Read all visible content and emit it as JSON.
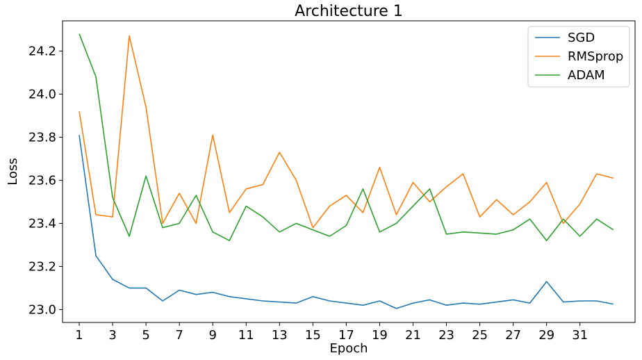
{
  "chart_data": {
    "type": "line",
    "title": "Architecture 1",
    "xlabel": "Epoch",
    "ylabel": "Loss",
    "xlim": [
      0.0,
      34.3
    ],
    "ylim": [
      22.94,
      24.34
    ],
    "xticks": [
      1,
      3,
      5,
      7,
      9,
      11,
      13,
      15,
      17,
      19,
      21,
      23,
      25,
      27,
      29,
      31
    ],
    "yticks": [
      23.0,
      23.2,
      23.4,
      23.6,
      23.8,
      24.0,
      24.2
    ],
    "ytick_labels": [
      "23.0",
      "23.2",
      "23.4",
      "23.6",
      "23.8",
      "24.0",
      "24.2"
    ],
    "legend_position": "top-right",
    "grid": false,
    "x": [
      1,
      2,
      3,
      4,
      5,
      6,
      7,
      8,
      9,
      10,
      11,
      12,
      13,
      14,
      15,
      16,
      17,
      18,
      19,
      20,
      21,
      22,
      23,
      24,
      25,
      26,
      27,
      28,
      29,
      30,
      31,
      32,
      33
    ],
    "series": [
      {
        "name": "SGD",
        "color": "#1f77b4",
        "values": [
          23.81,
          23.25,
          23.14,
          23.1,
          23.1,
          23.04,
          23.09,
          23.07,
          23.08,
          23.06,
          23.05,
          23.04,
          23.035,
          23.03,
          23.06,
          23.04,
          23.03,
          23.02,
          23.04,
          23.005,
          23.03,
          23.045,
          23.02,
          23.03,
          23.025,
          23.035,
          23.045,
          23.03,
          23.13,
          23.035,
          23.04,
          23.04,
          23.025
        ]
      },
      {
        "name": "RMSprop",
        "color": "#ff7f0e",
        "values": [
          23.92,
          23.44,
          23.43,
          24.27,
          23.94,
          23.4,
          23.54,
          23.4,
          23.81,
          23.45,
          23.56,
          23.58,
          23.73,
          23.6,
          23.38,
          23.48,
          23.53,
          23.45,
          23.66,
          23.44,
          23.59,
          23.5,
          23.57,
          23.63,
          23.43,
          23.51,
          23.44,
          23.5,
          23.59,
          23.4,
          23.49,
          23.63,
          23.61
        ]
      },
      {
        "name": "ADAM",
        "color": "#2ca02c",
        "values": [
          24.28,
          24.08,
          23.52,
          23.34,
          23.62,
          23.38,
          23.4,
          23.53,
          23.36,
          23.32,
          23.48,
          23.43,
          23.36,
          23.4,
          23.37,
          23.34,
          23.39,
          23.56,
          23.36,
          23.4,
          23.48,
          23.56,
          23.35,
          23.36,
          23.355,
          23.35,
          23.37,
          23.42,
          23.32,
          23.42,
          23.34,
          23.42,
          23.37
        ]
      }
    ]
  }
}
